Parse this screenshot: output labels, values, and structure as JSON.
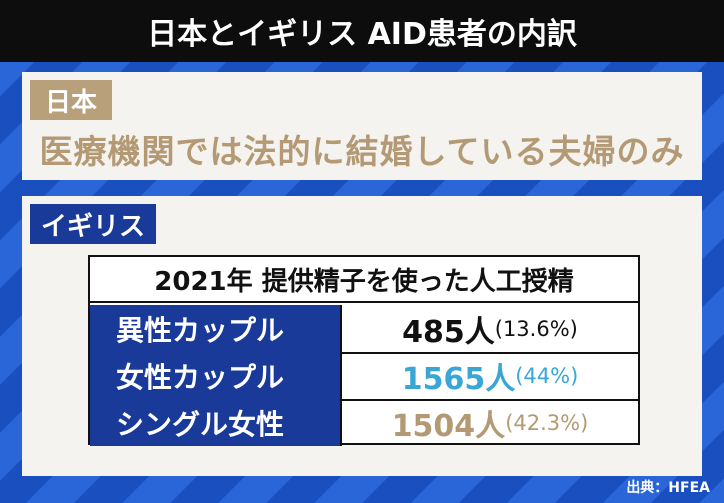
{
  "header": {
    "title": "日本とイギリス AID患者の内訳"
  },
  "japan": {
    "label": "日本",
    "text": "医療機関では法的に結婚している夫婦のみ"
  },
  "uk": {
    "label": "イギリス"
  },
  "table": {
    "title": "2021年 提供精子を使った人工授精",
    "rows": [
      {
        "label": "異性カップル",
        "count": "485人",
        "share": "(13.6%)",
        "color": "#111111"
      },
      {
        "label": "女性カップル",
        "count": "1565人",
        "share": "(44%)",
        "color": "#3aa6d6"
      },
      {
        "label": "シングル女性",
        "count": "1504人",
        "share": "(42.3%)",
        "color": "#b49a74"
      }
    ]
  },
  "source": "出典：HFEA"
}
